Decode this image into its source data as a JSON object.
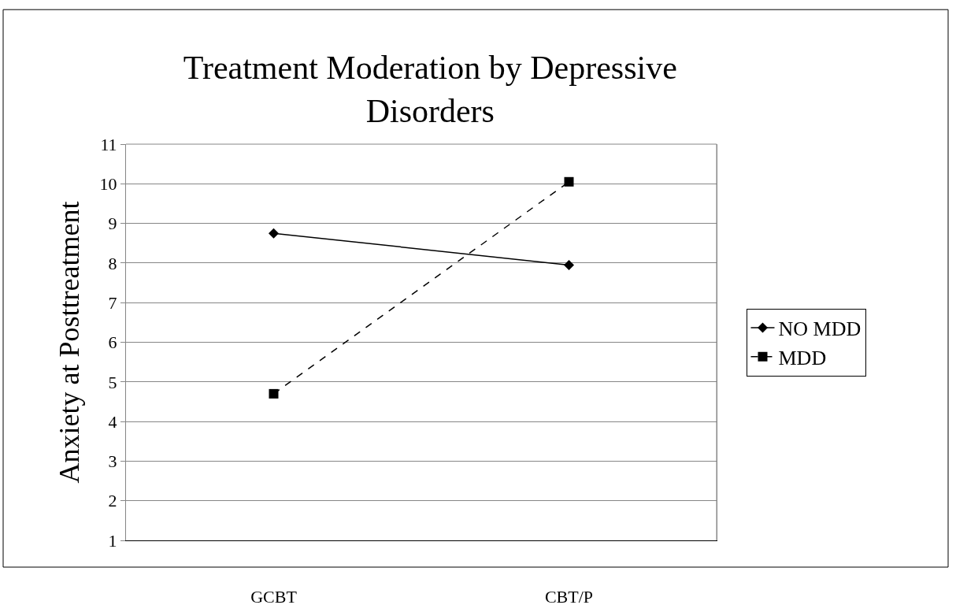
{
  "chart_data": {
    "type": "line",
    "title": "Treatment Moderation by Depressive Disorders",
    "ylabel": "Anxiety at Posttreatment",
    "categories": [
      "GCBT",
      "CBT/P"
    ],
    "series": [
      {
        "name": "NO MDD",
        "color": "#000000",
        "values": [
          8.75,
          7.95
        ],
        "marker": "diamond",
        "line_style": "solid"
      },
      {
        "name": "MDD",
        "color": "#000000",
        "values": [
          4.7,
          10.05
        ],
        "marker": "square",
        "line_style": "dashed"
      }
    ],
    "ylim": [
      1,
      11
    ],
    "yticks": [
      1,
      2,
      3,
      4,
      5,
      6,
      7,
      8,
      9,
      10,
      11
    ],
    "grid": "y",
    "legend": "right"
  }
}
